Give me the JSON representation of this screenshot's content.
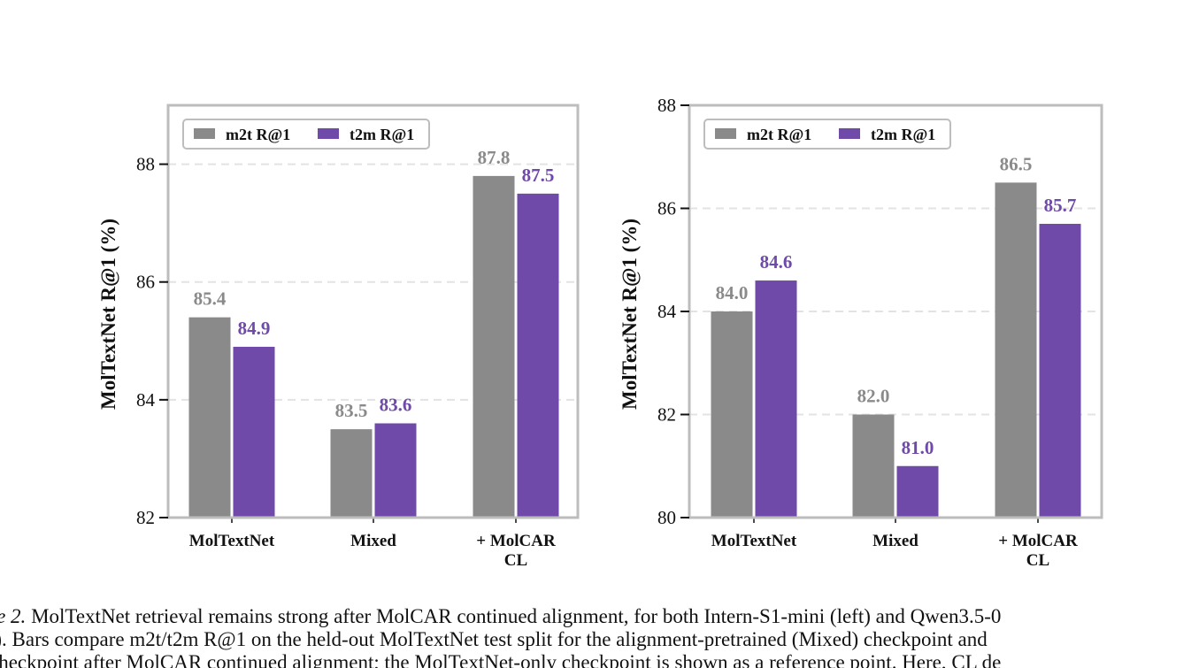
{
  "colors": {
    "m2t": "#8a8a8a",
    "t2m": "#6f4aa8",
    "frame": "#bdbdbd",
    "grid": "#e3e3e3",
    "text": "#111111"
  },
  "legend": {
    "placement": "top-left",
    "entries": [
      "m2t R@1",
      "t2m R@1"
    ]
  },
  "chart_data": [
    {
      "type": "bar",
      "panel": "left",
      "categories": [
        "MolTextNet",
        "Mixed",
        "+ MolCAR CL"
      ],
      "category_lines": [
        [
          "MolTextNet"
        ],
        [
          "Mixed"
        ],
        [
          "+ MolCAR",
          "CL"
        ]
      ],
      "series": [
        {
          "name": "m2t R@1",
          "values": [
            85.4,
            83.5,
            87.8
          ],
          "labels": [
            "85.4",
            "83.5",
            "87.8"
          ]
        },
        {
          "name": "t2m R@1",
          "values": [
            84.9,
            83.6,
            87.5
          ],
          "labels": [
            "84.9",
            "83.6",
            "87.5"
          ]
        }
      ],
      "ylabel": "MolTextNet R@1 (%)",
      "ylim": [
        82,
        89
      ],
      "yticks": [
        82,
        84,
        86,
        88
      ],
      "ytick_labels": [
        "82",
        "84",
        "86",
        "88"
      ],
      "grid": true,
      "legend": "top-left"
    },
    {
      "type": "bar",
      "panel": "right",
      "categories": [
        "MolTextNet",
        "Mixed",
        "+ MolCAR CL"
      ],
      "category_lines": [
        [
          "MolTextNet"
        ],
        [
          "Mixed"
        ],
        [
          "+ MolCAR",
          "CL"
        ]
      ],
      "series": [
        {
          "name": "m2t R@1",
          "values": [
            84.0,
            82.0,
            86.5
          ],
          "labels": [
            "84.0",
            "82.0",
            "86.5"
          ]
        },
        {
          "name": "t2m R@1",
          "values": [
            84.6,
            81.0,
            85.7
          ],
          "labels": [
            "84.6",
            "81.0",
            "85.7"
          ]
        }
      ],
      "ylabel": "MolTextNet R@1 (%)",
      "ylim": [
        80,
        88
      ],
      "yticks": [
        80,
        82,
        84,
        86,
        88
      ],
      "ytick_labels": [
        "80",
        "82",
        "84",
        "86",
        "88"
      ],
      "grid": true,
      "legend": "top-left"
    }
  ],
  "caption": {
    "label": "re 2.",
    "line1": " MolTextNet retrieval remains strong after MolCAR continued alignment, for both Intern-S1-mini (left) and Qwen3.5-0",
    "line2": "t). Bars compare m2t/t2m R@1 on the held-out MolTextNet test split for the alignment-pretrained (Mixed) checkpoint and",
    "line3": " checkpoint after MolCAR continued alignment; the MolTextNet-only checkpoint is shown as a reference point. Here, CL de"
  }
}
